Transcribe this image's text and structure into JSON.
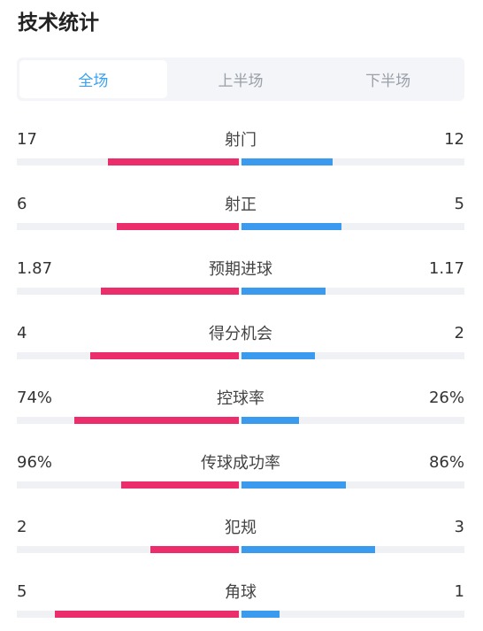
{
  "header": {
    "title": "技术统计"
  },
  "tabs": [
    {
      "label": "全场",
      "active": true
    },
    {
      "label": "上半场",
      "active": false
    },
    {
      "label": "下半场",
      "active": false
    }
  ],
  "colors": {
    "home": "#ec2d6c",
    "away": "#3a9bee",
    "accent": "#3aa0f0"
  },
  "stats": [
    {
      "name": "射门",
      "home": "17",
      "away": "12",
      "home_fill": 0.59,
      "away_fill": 0.41
    },
    {
      "name": "射正",
      "home": "6",
      "away": "5",
      "home_fill": 0.55,
      "away_fill": 0.45
    },
    {
      "name": "预期进球",
      "home": "1.87",
      "away": "1.17",
      "home_fill": 0.62,
      "away_fill": 0.38
    },
    {
      "name": "得分机会",
      "home": "4",
      "away": "2",
      "home_fill": 0.67,
      "away_fill": 0.33
    },
    {
      "name": "控球率",
      "home": "74%",
      "away": "26%",
      "home_fill": 0.74,
      "away_fill": 0.26
    },
    {
      "name": "传球成功率",
      "home": "96%",
      "away": "86%",
      "home_fill": 0.53,
      "away_fill": 0.47
    },
    {
      "name": "犯规",
      "home": "2",
      "away": "3",
      "home_fill": 0.4,
      "away_fill": 0.6
    },
    {
      "name": "角球",
      "home": "5",
      "away": "1",
      "home_fill": 0.83,
      "away_fill": 0.17
    }
  ]
}
